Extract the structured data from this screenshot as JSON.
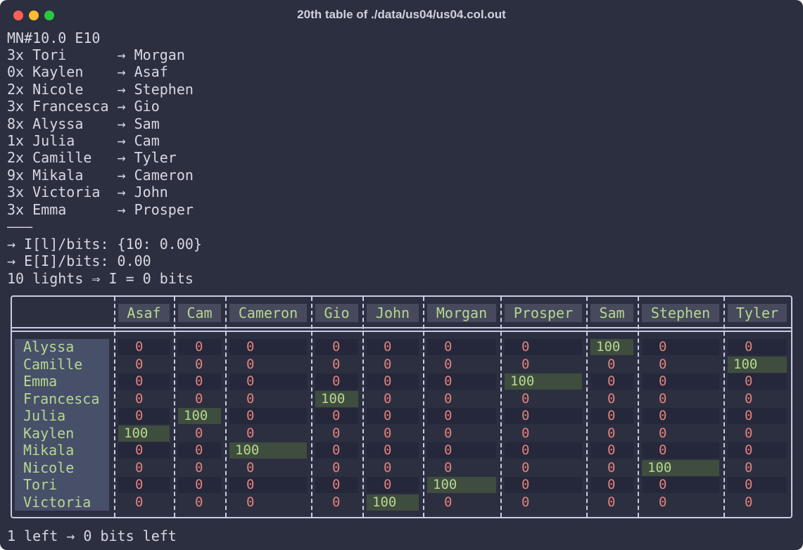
{
  "window": {
    "title": "20th table of ./data/us04/us04.col.out"
  },
  "header_line": "MN#10.0 E10",
  "pairs": [
    {
      "count": "3x",
      "name": "Tori",
      "target": "Morgan"
    },
    {
      "count": "0x",
      "name": "Kaylen",
      "target": "Asaf"
    },
    {
      "count": "2x",
      "name": "Nicole",
      "target": "Stephen"
    },
    {
      "count": "3x",
      "name": "Francesca",
      "target": "Gio"
    },
    {
      "count": "8x",
      "name": "Alyssa",
      "target": "Sam"
    },
    {
      "count": "1x",
      "name": "Julia",
      "target": "Cam"
    },
    {
      "count": "2x",
      "name": "Camille",
      "target": "Tyler"
    },
    {
      "count": "9x",
      "name": "Mikala",
      "target": "Cameron"
    },
    {
      "count": "3x",
      "name": "Victoria",
      "target": "John"
    },
    {
      "count": "3x",
      "name": "Emma",
      "target": "Prosper"
    }
  ],
  "arrow_glyph": "→",
  "separator": "———",
  "stats": [
    "→ I[l]/bits: {10: 0.00}",
    "→ E[I]/bits: 0.00",
    "10 lights ⇒ I = 0 bits"
  ],
  "columns": [
    "Asaf",
    "Cam",
    "Cameron",
    "Gio",
    "John",
    "Morgan",
    "Prosper",
    "Sam",
    "Stephen",
    "Tyler"
  ],
  "rows": [
    {
      "name": "Alyssa",
      "values": [
        "0",
        "0",
        "0",
        "0",
        "0",
        "0",
        "0",
        "100",
        "0",
        "0"
      ]
    },
    {
      "name": "Camille",
      "values": [
        "0",
        "0",
        "0",
        "0",
        "0",
        "0",
        "0",
        "0",
        "0",
        "100"
      ]
    },
    {
      "name": "Emma",
      "values": [
        "0",
        "0",
        "0",
        "0",
        "0",
        "0",
        "100",
        "0",
        "0",
        "0"
      ]
    },
    {
      "name": "Francesca",
      "values": [
        "0",
        "0",
        "0",
        "100",
        "0",
        "0",
        "0",
        "0",
        "0",
        "0"
      ]
    },
    {
      "name": "Julia",
      "values": [
        "0",
        "100",
        "0",
        "0",
        "0",
        "0",
        "0",
        "0",
        "0",
        "0"
      ]
    },
    {
      "name": "Kaylen",
      "values": [
        "100",
        "0",
        "0",
        "0",
        "0",
        "0",
        "0",
        "0",
        "0",
        "0"
      ]
    },
    {
      "name": "Mikala",
      "values": [
        "0",
        "0",
        "100",
        "0",
        "0",
        "0",
        "0",
        "0",
        "0",
        "0"
      ]
    },
    {
      "name": "Nicole",
      "values": [
        "0",
        "0",
        "0",
        "0",
        "0",
        "0",
        "0",
        "0",
        "100",
        "0"
      ]
    },
    {
      "name": "Tori",
      "values": [
        "0",
        "0",
        "0",
        "0",
        "0",
        "100",
        "0",
        "0",
        "0",
        "0"
      ]
    },
    {
      "name": "Victoria",
      "values": [
        "0",
        "0",
        "0",
        "0",
        "100",
        "0",
        "0",
        "0",
        "0",
        "0"
      ]
    }
  ],
  "footer_line": "1 left → 0 bits left",
  "colors": {
    "background": "#2c2f40",
    "text": "#d6d8e2",
    "green": "#b7d78f",
    "zero": "#e0817c",
    "hit_bg": "#3f4d3f",
    "border": "#c7cde4"
  }
}
